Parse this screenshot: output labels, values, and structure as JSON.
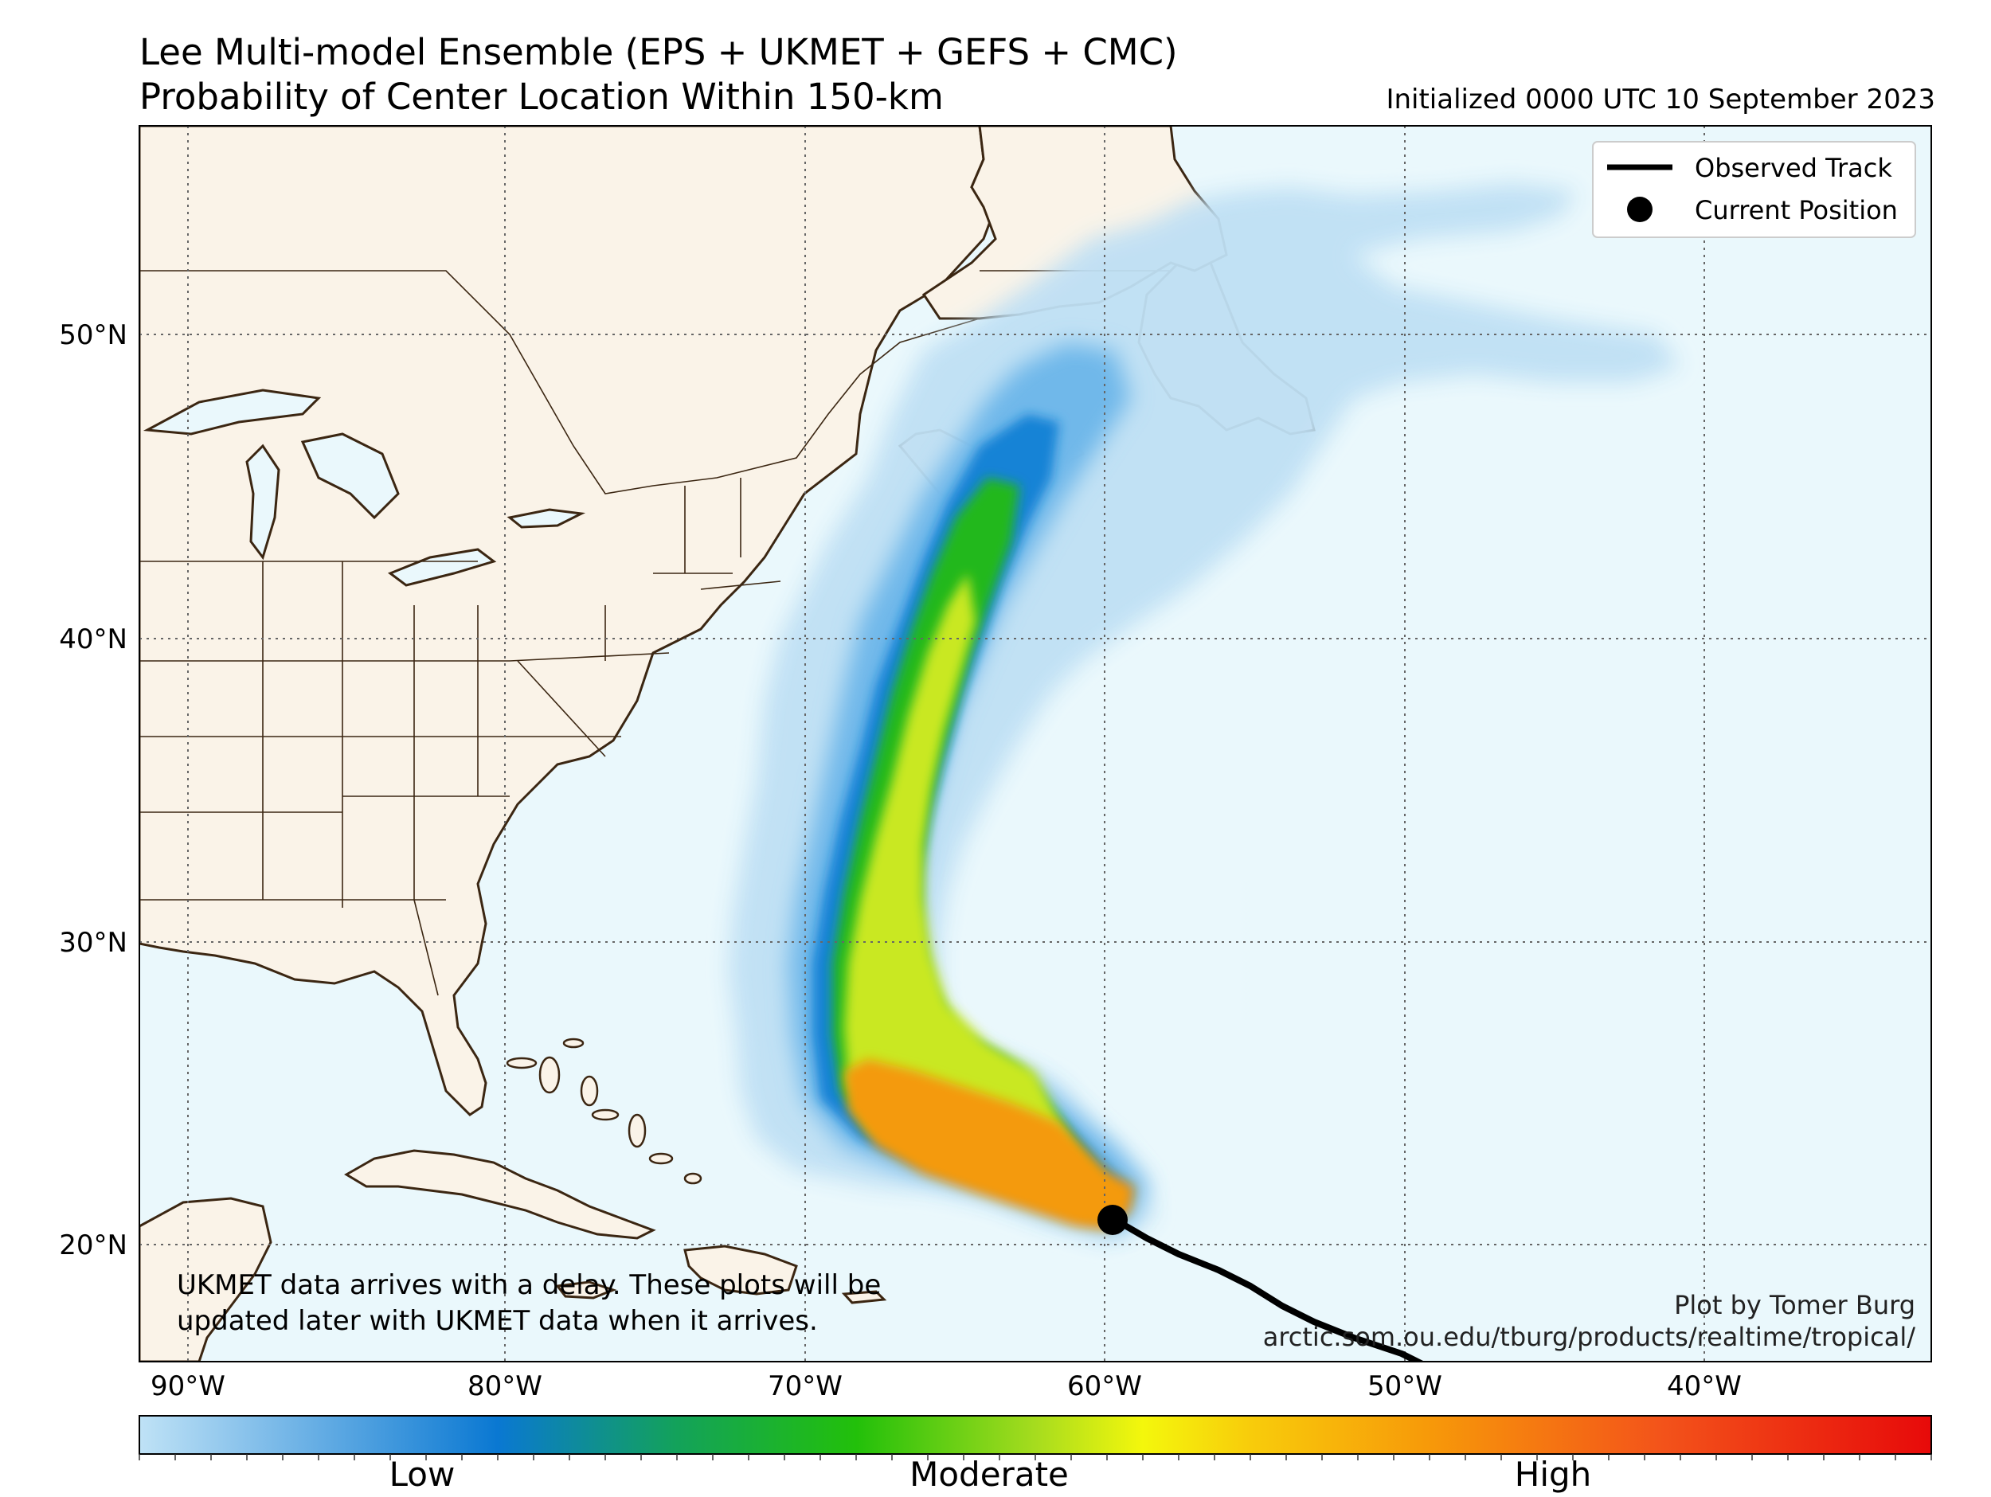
{
  "title": {
    "line1": "Lee Multi-model Ensemble (EPS + UKMET + GEFS + CMC)",
    "line2": "Probability of Center Location Within 150-km"
  },
  "init_time": "Initialized 0000 UTC 10 September 2023",
  "lat_labels": [
    "50°N",
    "40°N",
    "30°N",
    "20°N"
  ],
  "lon_labels": [
    "90°W",
    "80°W",
    "70°W",
    "60°W",
    "50°W",
    "40°W"
  ],
  "legend": {
    "observed_track": "Observed Track",
    "current_position": "Current Position"
  },
  "note": {
    "line1": "UKMET data arrives with a delay. These plots will be",
    "line2": "updated later with UKMET data when it arrives."
  },
  "credit": {
    "line1": "Plot by Tomer Burg",
    "line2": "arctic.som.ou.edu/tburg/products/realtime/tropical/"
  },
  "colorbar": {
    "low": "Low",
    "moderate": "Moderate",
    "high": "High"
  },
  "colors": {
    "ocean": "#eaf8fc",
    "land": "#faf3e8",
    "coast": "#3b2612",
    "grid": "#666666",
    "track": "#000000"
  }
}
